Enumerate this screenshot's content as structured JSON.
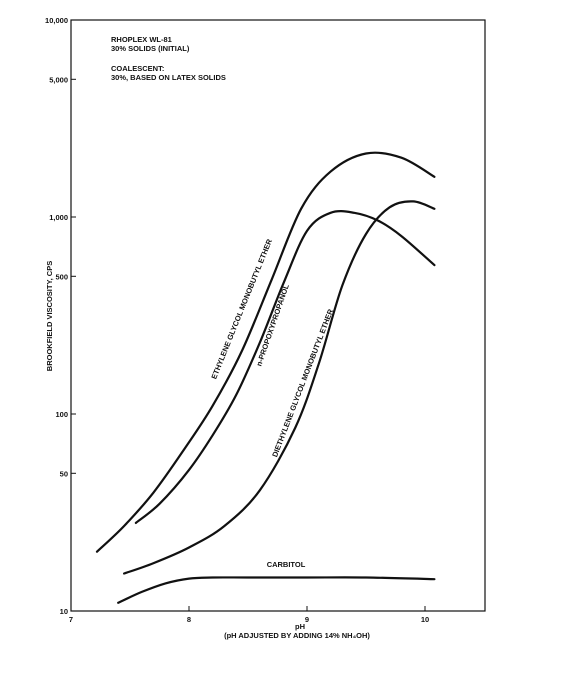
{
  "chart_data": {
    "type": "line",
    "xlabel": "pH",
    "xlabel_sub": "(pH ADJUSTED BY ADDING 14% NH₄OH)",
    "ylabel": "BROOKFIELD VISCOSITY, CPS",
    "y_scale": "log",
    "xlim": [
      7,
      10.5
    ],
    "ylim": [
      10,
      10000
    ],
    "x_ticks": [
      {
        "value": 7,
        "label": "7"
      },
      {
        "value": 8,
        "label": "8"
      },
      {
        "value": 9,
        "label": "9"
      },
      {
        "value": 10,
        "label": "10"
      }
    ],
    "y_ticks": [
      {
        "value": 10,
        "label": "10"
      },
      {
        "value": 50,
        "label": "50"
      },
      {
        "value": 100,
        "label": "100"
      },
      {
        "value": 500,
        "label": "500"
      },
      {
        "value": 1000,
        "label": "1,000"
      },
      {
        "value": 5000,
        "label": "5,000"
      },
      {
        "value": 10000,
        "label": "10,000"
      }
    ],
    "annotations": [
      {
        "id": "product",
        "lines": [
          "RHOPLEX WL-81",
          "30% SOLIDS (INITIAL)"
        ]
      },
      {
        "id": "coalescent",
        "lines": [
          "COALESCENT:",
          "30%, BASED ON LATEX SOLIDS"
        ]
      }
    ],
    "series": [
      {
        "name": "ETHYLENE GLYCOL MONOBUTYL ETHER",
        "x": [
          7.22,
          7.45,
          7.7,
          7.95,
          8.2,
          8.45,
          8.7,
          8.95,
          9.2,
          9.5,
          9.8,
          10.08
        ],
        "y": [
          20,
          27,
          40,
          65,
          110,
          210,
          480,
          1100,
          1700,
          2100,
          2000,
          1600
        ]
      },
      {
        "name": "n-PROPOXYPROPANOL",
        "x": [
          7.55,
          7.75,
          8.0,
          8.2,
          8.4,
          8.6,
          8.8,
          9.0,
          9.2,
          9.4,
          9.6,
          9.8,
          10.08
        ],
        "y": [
          28,
          35,
          52,
          78,
          125,
          230,
          460,
          850,
          1050,
          1050,
          960,
          800,
          570
        ]
      },
      {
        "name": "DIETHYLENE GLYCOL MONOBUTYL ETHER",
        "x": [
          7.45,
          7.7,
          8.0,
          8.3,
          8.6,
          8.9,
          9.1,
          9.3,
          9.5,
          9.7,
          9.9,
          10.08
        ],
        "y": [
          15.5,
          17.5,
          21,
          27,
          41,
          85,
          180,
          450,
          820,
          1120,
          1200,
          1100
        ]
      },
      {
        "name": "CARBITOL",
        "x": [
          7.4,
          7.6,
          7.8,
          8.0,
          8.2,
          8.5,
          9.0,
          9.5,
          10.08
        ],
        "y": [
          11,
          12.5,
          13.8,
          14.6,
          14.8,
          14.8,
          14.8,
          14.8,
          14.5
        ]
      }
    ]
  }
}
